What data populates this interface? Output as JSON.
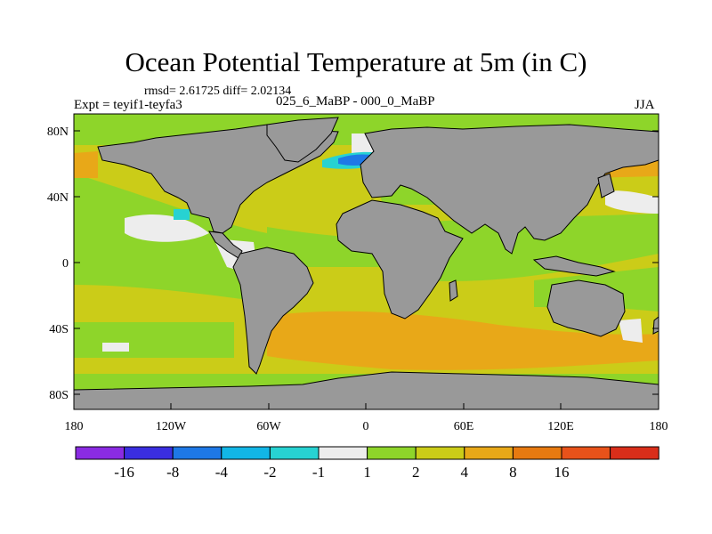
{
  "title": "Ocean Potential Temperature at 5m (in C)",
  "stats": "rmsd= 2.61725 diff= 2.02134",
  "experiment": "Expt = teyif1-teyfa3",
  "comparison": "025_6_MaBP - 000_0_MaBP",
  "season": "JJA",
  "axes": {
    "lat_ticks": [
      "80N",
      "40N",
      "0",
      "40S",
      "80S"
    ],
    "lon_ticks": [
      "180",
      "120W",
      "60W",
      "0",
      "60E",
      "120E",
      "180"
    ]
  },
  "colorbar": {
    "labels": [
      "-16",
      "-8",
      "-4",
      "-2",
      "-1",
      "1",
      "2",
      "4",
      "8",
      "16"
    ],
    "colors": [
      "#8a2be2",
      "#3a2ee0",
      "#1e78e6",
      "#12b6e6",
      "#27d2d2",
      "#ededed",
      "#8ed52a",
      "#cbcc18",
      "#e8a818",
      "#e77a10",
      "#e8521a",
      "#d92e1a"
    ]
  },
  "colors": {
    "land": "#999999",
    "background_anomaly": "#cbcc18"
  }
}
